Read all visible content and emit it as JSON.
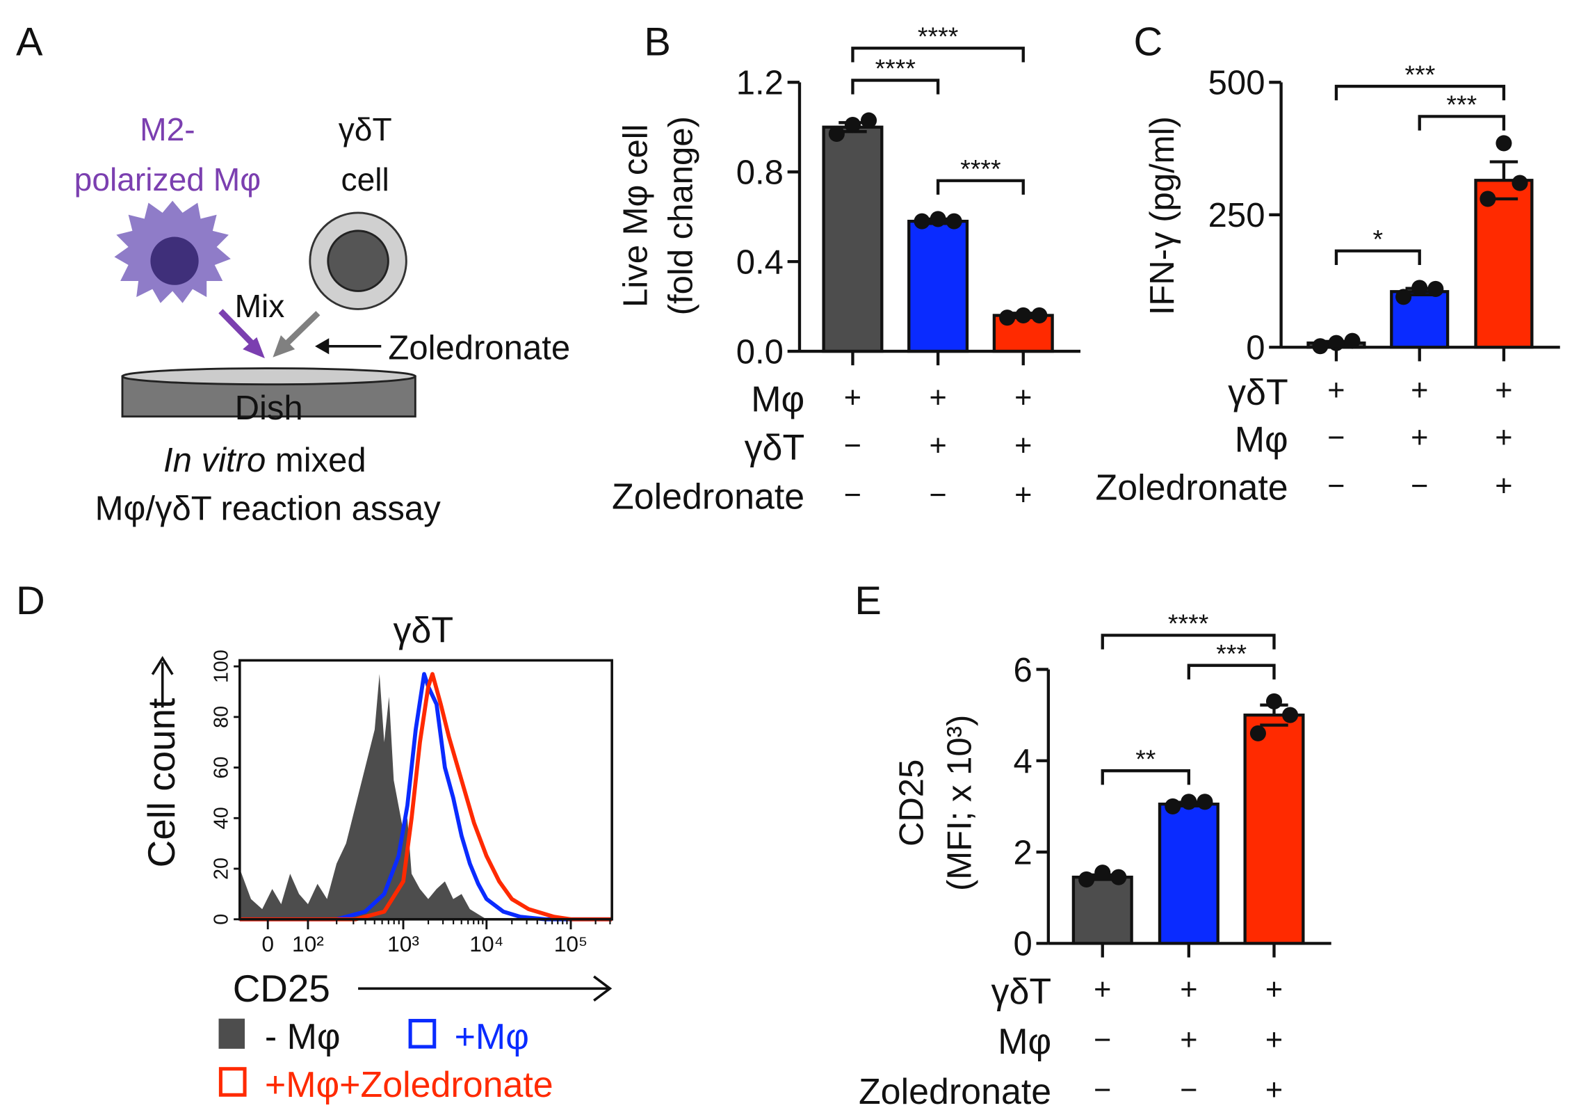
{
  "panel_letters": {
    "a": "A",
    "b": "B",
    "c": "C",
    "d": "D",
    "e": "E"
  },
  "colors": {
    "gray": "#4d4d4d",
    "blue": "#0a2bff",
    "red": "#ff2a00",
    "purple": "#7b3fb0"
  },
  "panel_a": {
    "m2_line1": "M2-",
    "m2_line2": "polarized Mφ",
    "gdt_line1": "γδT",
    "gdt_line2": "cell",
    "mix": "Mix",
    "zoledronate": "Zoledronate",
    "dish": "Dish",
    "caption_italic": "In vitro",
    "caption_rest": " mixed",
    "caption_line2": "Mφ/γδT reaction assay"
  },
  "chart_data": [
    {
      "id": "B",
      "type": "bar",
      "ylabel_line1": "Live Mφ cell",
      "ylabel_line2": "(fold change)",
      "ylim": [
        0,
        1.2
      ],
      "yticks": [
        "0.0",
        "0.4",
        "0.8",
        "1.2"
      ],
      "ytick_values": [
        0,
        0.4,
        0.8,
        1.2
      ],
      "values": [
        1.0,
        0.58,
        0.16
      ],
      "errors": [
        0.02,
        0.01,
        0.01
      ],
      "points": [
        [
          0.97,
          1.01,
          1.03
        ],
        [
          0.58,
          0.59,
          0.58
        ],
        [
          0.15,
          0.16,
          0.16
        ]
      ],
      "bar_colors": [
        "#4d4d4d",
        "#0a2bff",
        "#ff2a00"
      ],
      "rows": [
        {
          "label": "Mφ",
          "symbols": [
            "+",
            "+",
            "+"
          ]
        },
        {
          "label": "γδT",
          "symbols": [
            "−",
            "+",
            "+"
          ]
        },
        {
          "label": "Zoledronate",
          "symbols": [
            "−",
            "−",
            "+"
          ]
        }
      ],
      "significance": [
        {
          "from": 0,
          "to": 2,
          "label": "****",
          "level": 0
        },
        {
          "from": 0,
          "to": 1,
          "label": "****",
          "level": 1
        },
        {
          "from": 1,
          "to": 2,
          "label": "****",
          "level": 2
        }
      ]
    },
    {
      "id": "C",
      "type": "bar",
      "ylabel_line1": "IFN-γ (pg/ml)",
      "ylim": [
        0,
        500
      ],
      "yticks": [
        "0",
        "250",
        "500"
      ],
      "ytick_values": [
        0,
        250,
        500
      ],
      "values": [
        8,
        105,
        315
      ],
      "errors": [
        3,
        6,
        35
      ],
      "points": [
        [
          2,
          8,
          12
        ],
        [
          95,
          112,
          110
        ],
        [
          280,
          385,
          310
        ]
      ],
      "bar_colors": [
        "#4d4d4d",
        "#0a2bff",
        "#ff2a00"
      ],
      "rows": [
        {
          "label": "γδT",
          "symbols": [
            "+",
            "+",
            "+"
          ]
        },
        {
          "label": "Mφ",
          "symbols": [
            "−",
            "+",
            "+"
          ]
        },
        {
          "label": "Zoledronate",
          "symbols": [
            "−",
            "−",
            "+"
          ]
        }
      ],
      "significance": [
        {
          "from": 0,
          "to": 2,
          "label": "***",
          "level": 0
        },
        {
          "from": 1,
          "to": 2,
          "label": "***",
          "level": 1
        },
        {
          "from": 0,
          "to": 1,
          "label": "*",
          "level": 2
        }
      ]
    },
    {
      "id": "D",
      "type": "area",
      "title": "γδT",
      "xlabel": "CD25",
      "ylabel": "Cell count",
      "xticks": [
        "0",
        "10²",
        "10³",
        "10⁴",
        "10⁵"
      ],
      "xtick_log_positions": [
        1.55,
        2,
        3,
        4,
        5
      ],
      "xlim_log": [
        1.3,
        5.5
      ],
      "ylim": [
        0,
        100
      ],
      "yticks": [
        "0",
        "20",
        "40",
        "60",
        "80",
        "100"
      ],
      "ytick_values": [
        0,
        20,
        40,
        60,
        80,
        100
      ],
      "series": [
        {
          "name": "- Mφ",
          "color": "#4d4d4d",
          "style": "filled",
          "points": [
            [
              1.3,
              20
            ],
            [
              1.4,
              8
            ],
            [
              1.5,
              4
            ],
            [
              1.6,
              12
            ],
            [
              1.7,
              6
            ],
            [
              1.8,
              18
            ],
            [
              1.9,
              10
            ],
            [
              2.0,
              6
            ],
            [
              2.1,
              14
            ],
            [
              2.2,
              8
            ],
            [
              2.3,
              22
            ],
            [
              2.4,
              30
            ],
            [
              2.5,
              45
            ],
            [
              2.6,
              60
            ],
            [
              2.7,
              75
            ],
            [
              2.75,
              97
            ],
            [
              2.8,
              70
            ],
            [
              2.85,
              88
            ],
            [
              2.9,
              55
            ],
            [
              3.0,
              35
            ],
            [
              3.05,
              40
            ],
            [
              3.1,
              18
            ],
            [
              3.2,
              12
            ],
            [
              3.3,
              8
            ],
            [
              3.4,
              12
            ],
            [
              3.5,
              15
            ],
            [
              3.6,
              8
            ],
            [
              3.7,
              10
            ],
            [
              3.8,
              4
            ],
            [
              3.9,
              2
            ],
            [
              4.0,
              0
            ]
          ]
        },
        {
          "name": "+Mφ",
          "color": "#0a2bff",
          "style": "outline",
          "points": [
            [
              1.3,
              0
            ],
            [
              2.3,
              0
            ],
            [
              2.6,
              3
            ],
            [
              2.8,
              10
            ],
            [
              2.95,
              25
            ],
            [
              3.05,
              45
            ],
            [
              3.15,
              75
            ],
            [
              3.25,
              97
            ],
            [
              3.3,
              92
            ],
            [
              3.4,
              85
            ],
            [
              3.5,
              60
            ],
            [
              3.6,
              48
            ],
            [
              3.7,
              33
            ],
            [
              3.8,
              22
            ],
            [
              3.9,
              14
            ],
            [
              4.0,
              8
            ],
            [
              4.2,
              3
            ],
            [
              4.4,
              1
            ],
            [
              4.7,
              0
            ],
            [
              5.5,
              0
            ]
          ]
        },
        {
          "name": "+Mφ+Zoledronate",
          "color": "#ff2a00",
          "style": "outline",
          "points": [
            [
              1.3,
              0
            ],
            [
              2.5,
              0
            ],
            [
              2.8,
              3
            ],
            [
              3.0,
              15
            ],
            [
              3.1,
              40
            ],
            [
              3.2,
              70
            ],
            [
              3.3,
              92
            ],
            [
              3.35,
              97
            ],
            [
              3.45,
              85
            ],
            [
              3.55,
              72
            ],
            [
              3.7,
              55
            ],
            [
              3.85,
              38
            ],
            [
              4.0,
              25
            ],
            [
              4.15,
              15
            ],
            [
              4.3,
              8
            ],
            [
              4.5,
              4
            ],
            [
              4.8,
              1
            ],
            [
              5.0,
              0
            ],
            [
              5.5,
              0
            ]
          ]
        }
      ],
      "legend": [
        "- Mφ",
        "+Mφ",
        "+Mφ+Zoledronate"
      ]
    },
    {
      "id": "E",
      "type": "bar",
      "ylabel_line1": "CD25",
      "ylabel_line2": "(MFI; x 10³)",
      "ylim": [
        0,
        6
      ],
      "yticks": [
        "0",
        "2",
        "4",
        "6"
      ],
      "ytick_values": [
        0,
        2,
        4,
        6
      ],
      "values": [
        1.45,
        3.05,
        5.0
      ],
      "errors": [
        0.05,
        0.04,
        0.22
      ],
      "points": [
        [
          1.4,
          1.55,
          1.45
        ],
        [
          3.0,
          3.1,
          3.1
        ],
        [
          4.6,
          5.3,
          5.0
        ]
      ],
      "bar_colors": [
        "#4d4d4d",
        "#0a2bff",
        "#ff2a00"
      ],
      "rows": [
        {
          "label": "γδT",
          "symbols": [
            "+",
            "+",
            "+"
          ]
        },
        {
          "label": "Mφ",
          "symbols": [
            "−",
            "+",
            "+"
          ]
        },
        {
          "label": "Zoledronate",
          "symbols": [
            "−",
            "−",
            "+"
          ]
        }
      ],
      "significance": [
        {
          "from": 0,
          "to": 2,
          "label": "****",
          "level": 0
        },
        {
          "from": 1,
          "to": 2,
          "label": "***",
          "level": 1
        },
        {
          "from": 0,
          "to": 1,
          "label": "**",
          "level": 2
        }
      ]
    }
  ]
}
